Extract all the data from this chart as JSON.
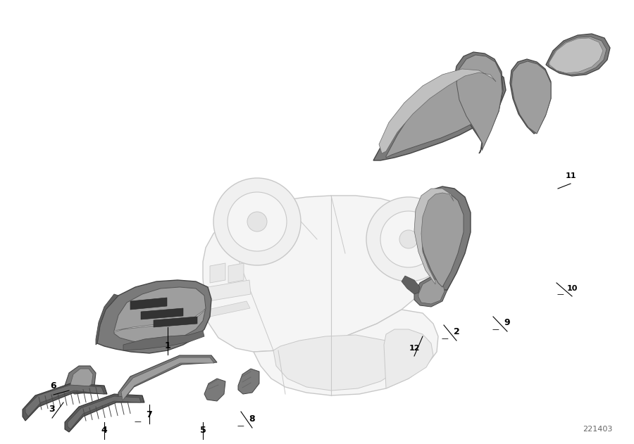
{
  "diagram_id": "221403",
  "bg": "#ffffff",
  "car_ec": "#c8c8c8",
  "car_fc": "#f5f5f5",
  "dark": "#7a7a7a",
  "mid": "#9e9e9e",
  "light": "#c0c0c0",
  "vlight": "#d8d8d8",
  "label_positions": {
    "1": [
      0.258,
      0.555,
      0.258,
      0.49
    ],
    "2": [
      0.71,
      0.535,
      0.695,
      0.51
    ],
    "3": [
      0.082,
      0.77,
      0.098,
      0.755
    ],
    "4": [
      0.162,
      0.82,
      0.162,
      0.795
    ],
    "5": [
      0.305,
      0.82,
      0.305,
      0.8
    ],
    "6": [
      0.083,
      0.618,
      0.105,
      0.618
    ],
    "7": [
      0.233,
      0.79,
      0.233,
      0.768
    ],
    "8": [
      0.388,
      0.798,
      0.37,
      0.78
    ],
    "9": [
      0.793,
      0.598,
      0.773,
      0.583
    ],
    "10": [
      0.903,
      0.52,
      0.882,
      0.508
    ],
    "11": [
      0.896,
      0.285,
      0.876,
      0.308
    ],
    "12": [
      0.637,
      0.632,
      0.622,
      0.615
    ]
  },
  "dash_labels": [
    "2",
    "7",
    "8",
    "9",
    "10"
  ]
}
